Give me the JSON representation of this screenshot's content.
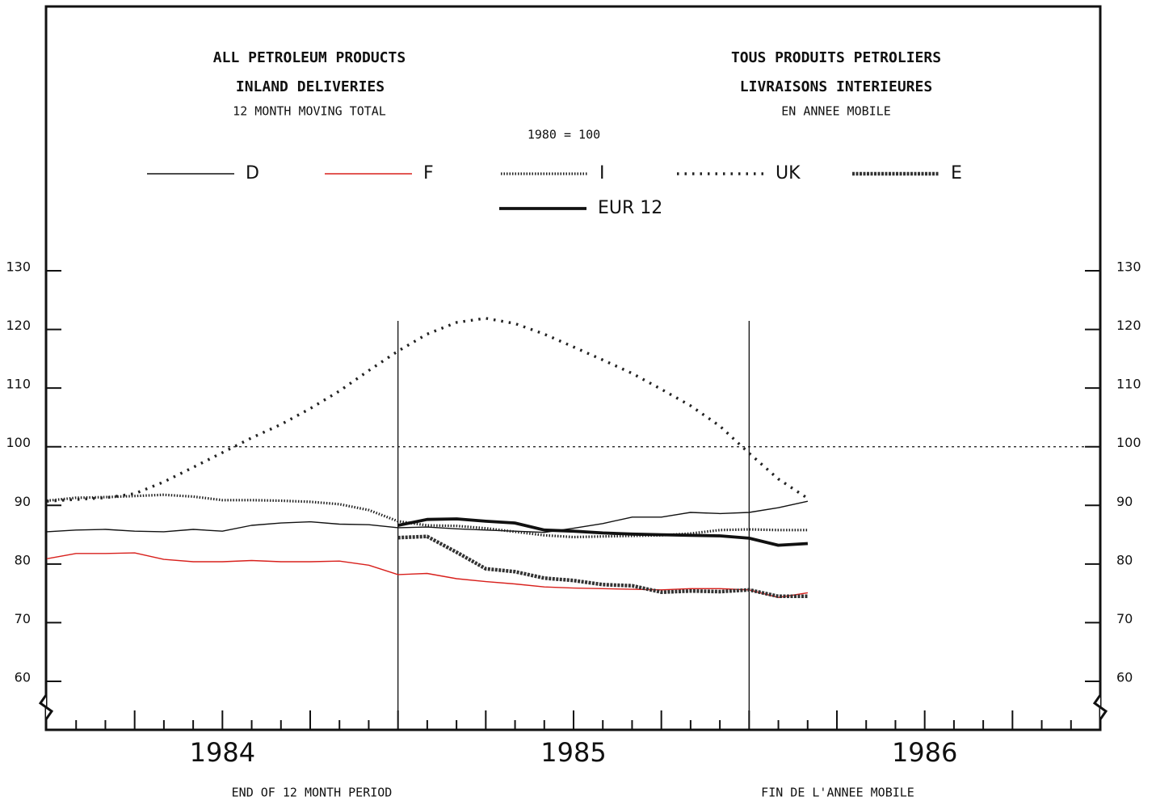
{
  "chart_data": {
    "type": "line",
    "title_left": [
      "ALL PETROLEUM PRODUCTS",
      "INLAND DELIVERIES",
      "12 MONTH MOVING TOTAL"
    ],
    "title_right": [
      "TOUS PRODUITS PETROLIERS",
      "LIVRAISONS INTERIEURES",
      "EN ANNEE MOBILE"
    ],
    "subtitle": "1980 = 100",
    "xlabel_left": "END OF 12 MONTH PERIOD",
    "xlabel_right": "FIN DE L'ANNEE MOBILE",
    "x": [
      1984,
      1984.083,
      1984.167,
      1984.25,
      1984.333,
      1984.417,
      1984.5,
      1984.583,
      1984.667,
      1984.75,
      1984.833,
      1984.917,
      1985,
      1985.083,
      1985.167,
      1985.25,
      1985.333,
      1985.417,
      1985.5,
      1985.583,
      1985.667,
      1985.75,
      1985.833,
      1985.917,
      1986,
      1986.083,
      1986.167
    ],
    "series": [
      {
        "name": "D",
        "color": "#111111",
        "style": "thin",
        "values": [
          85.5,
          85.8,
          85.9,
          85.6,
          85.5,
          85.9,
          85.6,
          86.6,
          87.0,
          87.2,
          86.8,
          86.7,
          86.2,
          86.3,
          86.0,
          85.8,
          85.6,
          85.4,
          86.1,
          86.9,
          88.0,
          88.0,
          88.8,
          88.6,
          88.8,
          89.6,
          90.7
        ]
      },
      {
        "name": "F",
        "color": "#d8201c",
        "style": "thin",
        "values": [
          80.9,
          81.8,
          81.8,
          81.9,
          80.8,
          80.4,
          80.4,
          80.6,
          80.4,
          80.4,
          80.5,
          79.8,
          78.2,
          78.4,
          77.5,
          77.0,
          76.6,
          76.1,
          75.9,
          75.8,
          75.7,
          75.6,
          75.8,
          75.8,
          75.6,
          74.3,
          75.1
        ]
      },
      {
        "name": "I",
        "color": "#222222",
        "style": "dense-crosses",
        "values": [
          90.8,
          91.3,
          91.4,
          91.6,
          91.8,
          91.5,
          90.9,
          90.9,
          90.8,
          90.6,
          90.2,
          89.2,
          87.3,
          86.6,
          86.5,
          86.1,
          85.5,
          84.9,
          84.6,
          84.7,
          84.8,
          84.9,
          85.2,
          85.8,
          85.9,
          85.8,
          85.8
        ]
      },
      {
        "name": "UK",
        "color": "#222222",
        "style": "sparse-crosses",
        "values": [
          90.7,
          91.0,
          91.3,
          92.0,
          94.0,
          96.5,
          99.0,
          101.5,
          103.8,
          106.5,
          109.5,
          113.0,
          116.3,
          119.2,
          121.2,
          121.9,
          121.0,
          119.2,
          117.0,
          114.8,
          112.5,
          109.8,
          107.0,
          103.5,
          98.9,
          94.5,
          91.2
        ]
      },
      {
        "name": "E",
        "color": "#333333",
        "style": "thick-dotted",
        "values": [
          null,
          null,
          null,
          null,
          null,
          null,
          null,
          null,
          null,
          null,
          null,
          null,
          84.5,
          84.7,
          82.0,
          79.2,
          78.7,
          77.6,
          77.2,
          76.5,
          76.3,
          75.2,
          75.4,
          75.3,
          75.6,
          74.5,
          74.5
        ]
      },
      {
        "name": "EUR 12",
        "color": "#111111",
        "style": "thick",
        "values": [
          null,
          null,
          null,
          null,
          null,
          null,
          null,
          null,
          null,
          null,
          null,
          null,
          86.6,
          87.6,
          87.7,
          87.3,
          87.0,
          85.8,
          85.6,
          85.3,
          85.1,
          85.0,
          84.9,
          84.8,
          84.4,
          83.2,
          83.5
        ]
      }
    ],
    "xlim": [
      1984,
      1987
    ],
    "xticks": [
      {
        "value": 1984.5,
        "label": "1984"
      },
      {
        "value": 1985.5,
        "label": "1985"
      },
      {
        "value": 1986.5,
        "label": "1986"
      }
    ],
    "xgrid": [
      1985,
      1986
    ],
    "ylim": [
      60,
      130
    ],
    "yticks": [
      60,
      70,
      80,
      90,
      100,
      110,
      120,
      130
    ],
    "reference_line": 100
  }
}
